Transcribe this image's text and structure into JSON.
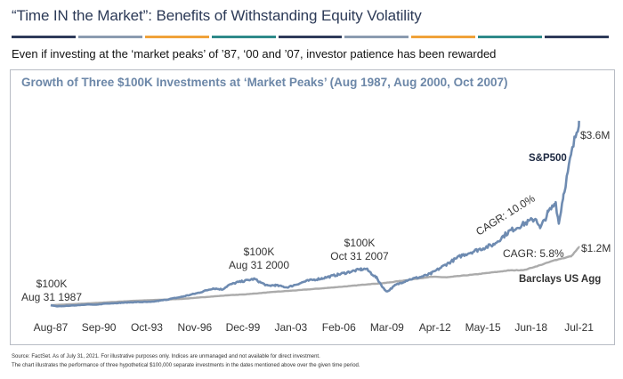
{
  "page": {
    "title": "“Time IN the Market”: Benefits of Withstanding Equity Volatility",
    "subtitle": "Even if investing at the ‘market peaks’ of ’87, ‘00 and ’07, investor patience has been rewarded",
    "footnote_1": "Source: FactSet. As of July 31, 2021. For illustrative purposes only. Indices are unmanaged and not available for direct investment.",
    "footnote_2": "The chart illustrates the performance of three hypothetical $100,000 separate investments in the dates mentioned above over the given time period.",
    "rule_colors": [
      "#2e3b5a",
      "#8b9bb0",
      "#f0a23a",
      "#2e8a8a",
      "#2e3b5a",
      "#8b9bb0",
      "#f0a23a",
      "#2e8a8a",
      "#2e3b5a"
    ]
  },
  "chart_data": {
    "type": "line",
    "title": "Growth of Three $100K Investments at ‘Market Peaks’ (Aug 1987, Aug 2000, Oct 2007)",
    "xlabel": "",
    "ylabel": "",
    "xlim": [
      1987.58,
      2021.58
    ],
    "ylim": [
      0,
      3800000
    ],
    "grid": false,
    "x_tick_labels": [
      {
        "label": "Aug-87",
        "x": 1987.58
      },
      {
        "label": "Sep-90",
        "x": 1990.67
      },
      {
        "label": "Oct-93",
        "x": 1993.75
      },
      {
        "label": "Nov-96",
        "x": 1996.83
      },
      {
        "label": "Dec-99",
        "x": 1999.92
      },
      {
        "label": "Jan-03",
        "x": 2003.0
      },
      {
        "label": "Feb-06",
        "x": 2006.08
      },
      {
        "label": "Mar-09",
        "x": 2009.17
      },
      {
        "label": "Apr-12",
        "x": 2012.25
      },
      {
        "label": "May-15",
        "x": 2015.33
      },
      {
        "label": "Jun-18",
        "x": 2018.42
      },
      {
        "label": "Jul-21",
        "x": 2021.5
      }
    ],
    "series": [
      {
        "name": "S&P500",
        "color": "#6e8bb1",
        "x": [
          1987.58,
          1988.0,
          1989.0,
          1990.0,
          1990.5,
          1991.0,
          1992.0,
          1993.0,
          1994.0,
          1995.0,
          1996.0,
          1997.0,
          1998.0,
          1998.6,
          1999.0,
          1999.5,
          2000.0,
          2000.66,
          2001.0,
          2001.5,
          2002.0,
          2002.75,
          2003.0,
          2004.0,
          2005.0,
          2006.0,
          2007.0,
          2007.5,
          2007.83,
          2008.5,
          2009.0,
          2009.2,
          2009.7,
          2010.5,
          2011.5,
          2012.0,
          2013.0,
          2014.0,
          2015.0,
          2016.0,
          2017.0,
          2018.0,
          2018.75,
          2019.0,
          2019.5,
          2020.0,
          2020.2,
          2020.5,
          2021.0,
          2021.5
        ],
        "values": [
          100000,
          78000,
          95000,
          115000,
          108000,
          130000,
          145000,
          160000,
          162000,
          205000,
          260000,
          330000,
          420000,
          400000,
          480000,
          530000,
          560000,
          600000,
          540000,
          470000,
          480000,
          440000,
          460000,
          560000,
          610000,
          680000,
          750000,
          780000,
          790000,
          620000,
          400000,
          360000,
          480000,
          580000,
          650000,
          700000,
          880000,
          1050000,
          1150000,
          1250000,
          1500000,
          1650000,
          1750000,
          1550000,
          1850000,
          2050000,
          1650000,
          2200000,
          2950000,
          3600000
        ]
      },
      {
        "name": "Barclays US Agg",
        "color": "#ababab",
        "x": [
          1987.58,
          1990.0,
          1993.0,
          1996.0,
          1999.0,
          2000.0,
          2002.0,
          2003.0,
          2005.0,
          2007.0,
          2008.0,
          2009.0,
          2010.0,
          2012.0,
          2013.0,
          2015.0,
          2017.0,
          2018.0,
          2019.0,
          2020.0,
          2021.0,
          2021.5
        ],
        "values": [
          100000,
          135000,
          185000,
          220000,
          290000,
          305000,
          355000,
          375000,
          420000,
          470000,
          500000,
          520000,
          560000,
          640000,
          630000,
          690000,
          760000,
          770000,
          860000,
          960000,
          1030000,
          1200000
        ]
      }
    ],
    "annotations": [
      {
        "id": "peak1987",
        "lines": [
          "$100K",
          "Aug 31 1987"
        ]
      },
      {
        "id": "peak2000",
        "lines": [
          "$100K",
          "Aug 31 2000"
        ]
      },
      {
        "id": "peak2007",
        "lines": [
          "$100K",
          "Oct 31 2007"
        ]
      },
      {
        "id": "spx_end",
        "text": "$3.6M"
      },
      {
        "id": "agg_end",
        "text": "$1.2M"
      },
      {
        "id": "spx_name",
        "text": "S&P500"
      },
      {
        "id": "agg_name",
        "text": "Barclays US Agg"
      },
      {
        "id": "spx_cagr",
        "text": "CAGR: 10.0%"
      },
      {
        "id": "agg_cagr",
        "text": "CAGR: 5.8%"
      }
    ]
  }
}
